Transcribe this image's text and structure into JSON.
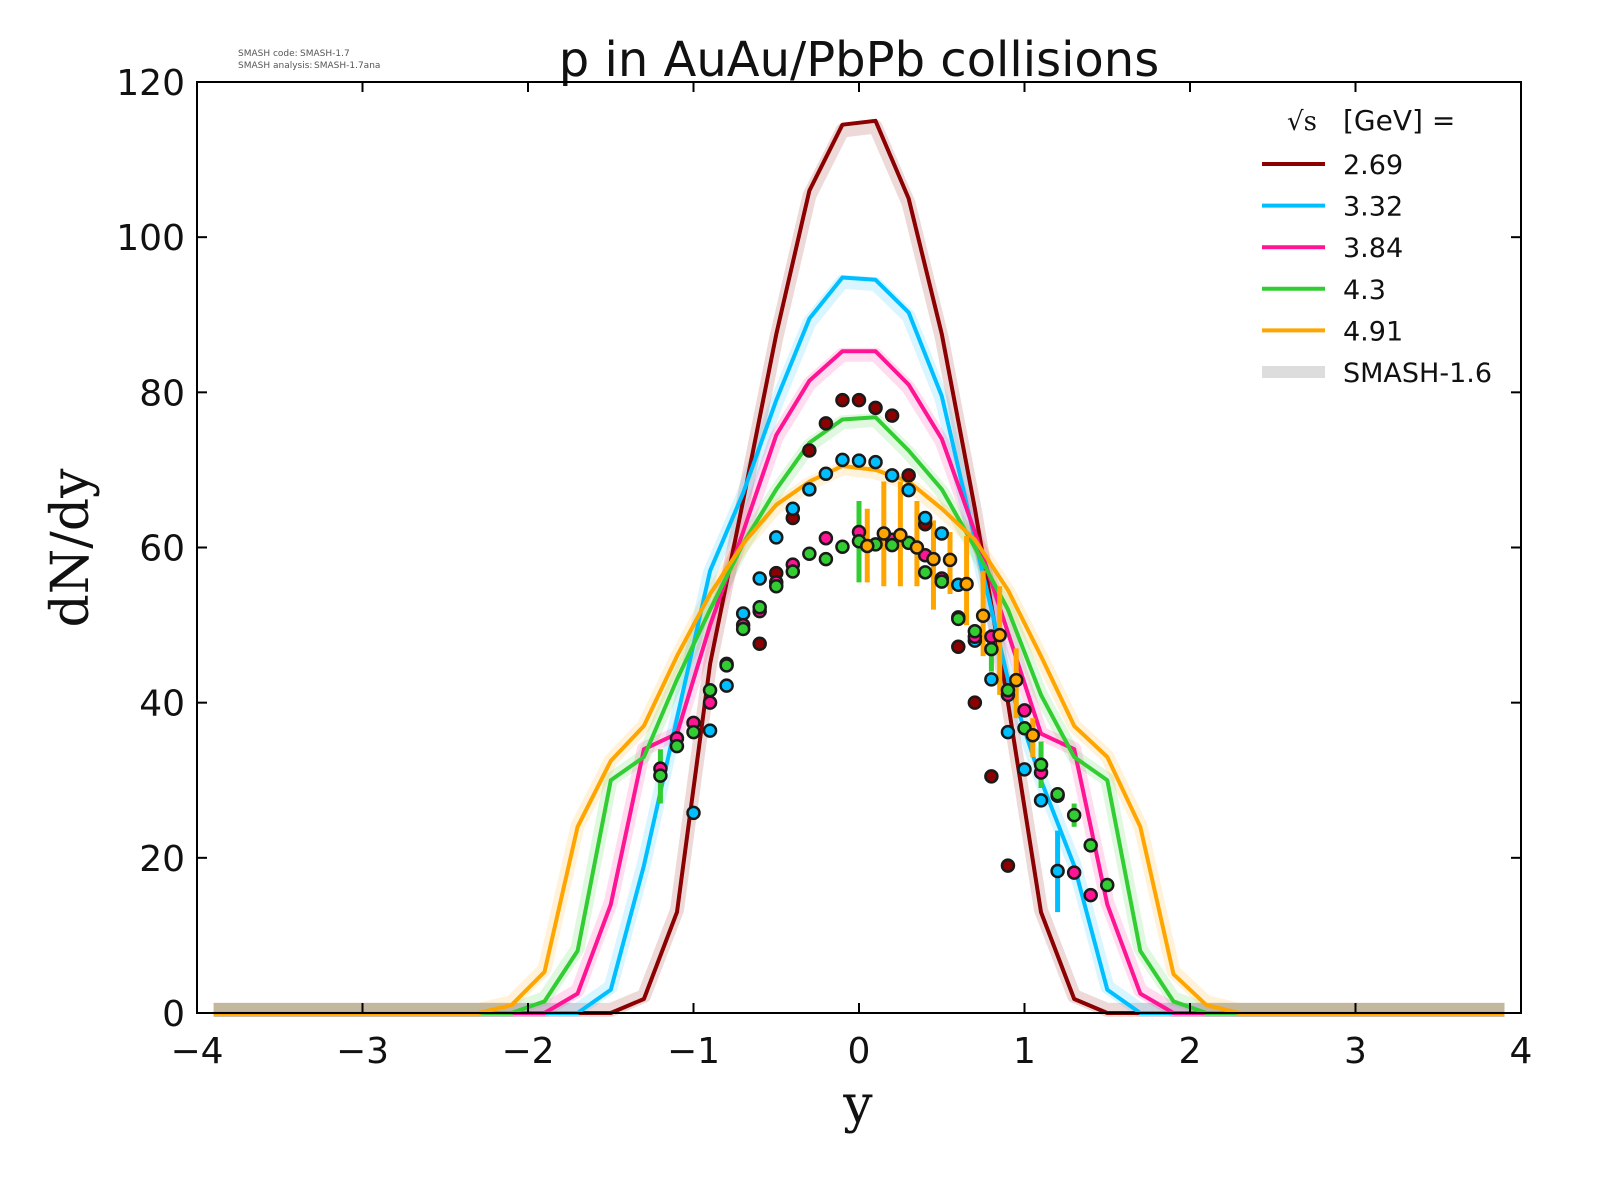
{
  "header": {
    "code_label": "SMASH code:",
    "code_value": "SMASH-1.7",
    "analysis_label": "SMASH analysis:",
    "analysis_value": "SMASH-1.7ana"
  },
  "chart_data": {
    "type": "line",
    "title": "p in AuAu/PbPb collisions",
    "xlabel": "y",
    "ylabel": "dN/dy",
    "xlim": [
      -4,
      4
    ],
    "ylim": [
      0,
      120
    ],
    "xticks": [
      -4,
      -3,
      -2,
      -1,
      0,
      1,
      2,
      3,
      4
    ],
    "yticks": [
      0,
      20,
      40,
      60,
      80,
      100,
      120
    ],
    "xtick_labels": [
      "−4",
      "−3",
      "−2",
      "−1",
      "0",
      "1",
      "2",
      "3",
      "4"
    ],
    "ytick_labels": [
      "0",
      "20",
      "40",
      "60",
      "80",
      "100",
      "120"
    ],
    "grid": false,
    "legend": {
      "title": "[GeV] =",
      "title_symbol": "√s",
      "placement": "top-right",
      "reference_label": "SMASH-1.6",
      "reference_color": "#dddddd"
    },
    "series": [
      {
        "name": "2.69",
        "color": "#8b0000",
        "line": {
          "x": [
            -3.9,
            -1.7,
            -1.5,
            -1.3,
            -1.1,
            -0.9,
            -0.7,
            -0.5,
            -0.3,
            -0.1,
            0.1,
            0.3,
            0.5,
            0.7,
            0.9,
            1.1,
            1.3,
            1.5,
            1.7,
            3.9
          ],
          "y": [
            0,
            0,
            0,
            1.8,
            13,
            45,
            66,
            87.5,
            106,
            114.5,
            115,
            105,
            87.5,
            65,
            40,
            13,
            1.8,
            0,
            0,
            0
          ]
        },
        "points": {
          "x": [
            -0.6,
            -0.5,
            -0.4,
            -0.3,
            -0.2,
            -0.1,
            0,
            0.1,
            0.2,
            0.3,
            0.4,
            0.6,
            0.7,
            0.8,
            0.9
          ],
          "y": [
            47.6,
            56.7,
            63.8,
            72.5,
            76,
            79,
            79,
            78,
            77,
            69.3,
            63,
            47.2,
            40,
            30.5,
            19
          ]
        }
      },
      {
        "name": "3.32",
        "color": "#00bfff",
        "line": {
          "x": [
            -3.9,
            -1.7,
            -1.5,
            -1.3,
            -1.1,
            -0.9,
            -0.7,
            -0.5,
            -0.3,
            -0.1,
            0.1,
            0.3,
            0.5,
            0.7,
            0.9,
            1.1,
            1.3,
            1.5,
            1.7,
            3.9
          ],
          "y": [
            0,
            0,
            3,
            19,
            38,
            57,
            67,
            79,
            89.5,
            94.8,
            94.5,
            90.3,
            79.5,
            61,
            43,
            30,
            19,
            3,
            0,
            0
          ]
        },
        "points": {
          "x": [
            -1.0,
            -0.9,
            -0.8,
            -0.7,
            -0.6,
            -0.5,
            -0.4,
            -0.3,
            -0.2,
            -0.1,
            0,
            0.1,
            0.2,
            0.3,
            0.4,
            0.5,
            0.6,
            0.7,
            0.8,
            0.9,
            1.0,
            1.1,
            1.2
          ],
          "y": [
            25.8,
            36.4,
            42.2,
            51.5,
            56,
            61.3,
            65,
            67.5,
            69.5,
            71.3,
            71.2,
            71,
            69.3,
            67.4,
            63.8,
            61.8,
            55.2,
            48,
            43,
            36.2,
            31.4,
            27.4,
            18.3
          ],
          "err_x": [
            1.2
          ],
          "err_lo": [
            13
          ],
          "err_hi": [
            23.5
          ]
        }
      },
      {
        "name": "3.84",
        "color": "#ff1493",
        "line": {
          "x": [
            -3.9,
            -1.9,
            -1.7,
            -1.5,
            -1.3,
            -1.1,
            -0.9,
            -0.7,
            -0.5,
            -0.3,
            -0.1,
            0.1,
            0.3,
            0.5,
            0.7,
            0.9,
            1.1,
            1.3,
            1.5,
            1.7,
            1.9,
            3.9
          ],
          "y": [
            0,
            0,
            2.5,
            14,
            34,
            36,
            50,
            62,
            74.5,
            81.5,
            85.3,
            85.3,
            81,
            74,
            62,
            49,
            36,
            34,
            14,
            2.5,
            0,
            0
          ]
        },
        "points": {
          "x": [
            -1.2,
            -1.1,
            -1.0,
            -0.9,
            -0.8,
            -0.7,
            -0.6,
            -0.5,
            -0.4,
            -0.2,
            0,
            0.2,
            0.4,
            0.5,
            0.6,
            0.7,
            0.8,
            0.9,
            1.0,
            1.1,
            1.2,
            1.3,
            1.4
          ],
          "y": [
            31.5,
            35.4,
            37.4,
            40,
            45,
            50,
            51.8,
            55.5,
            57.8,
            61.2,
            62,
            61,
            59,
            56,
            51,
            48.5,
            48.5,
            41,
            39,
            31,
            28,
            18.1,
            15.2
          ]
        }
      },
      {
        "name": "4.3",
        "color": "#32cd32",
        "line": {
          "x": [
            -3.9,
            -2.1,
            -1.9,
            -1.7,
            -1.5,
            -1.3,
            -1.1,
            -0.9,
            -0.7,
            -0.5,
            -0.3,
            -0.1,
            0.1,
            0.3,
            0.5,
            0.7,
            0.9,
            1.1,
            1.3,
            1.5,
            1.7,
            1.9,
            2.1,
            3.9
          ],
          "y": [
            0,
            0,
            1.5,
            8,
            30,
            33,
            43,
            52,
            60.5,
            67.5,
            73.5,
            76.5,
            76.8,
            72.5,
            67.5,
            60,
            52,
            41,
            33,
            30,
            8,
            1.5,
            0,
            0
          ]
        },
        "points": {
          "x": [
            -1.2,
            -1.1,
            -1.0,
            -0.9,
            -0.8,
            -0.7,
            -0.6,
            -0.5,
            -0.4,
            -0.3,
            -0.2,
            -0.1,
            0,
            0.1,
            0.2,
            0.3,
            0.4,
            0.5,
            0.6,
            0.7,
            0.8,
            0.9,
            1.0,
            1.1,
            1.2,
            1.3,
            1.4,
            1.5
          ],
          "y": [
            30.6,
            34.4,
            36.2,
            41.6,
            44.8,
            49.5,
            52.3,
            55,
            56.9,
            59.2,
            58.5,
            60.1,
            60.8,
            60.4,
            60.3,
            60.6,
            56.8,
            55.6,
            50.8,
            49.2,
            46.9,
            41.6,
            36.7,
            32,
            28.2,
            25.5,
            21.6,
            16.5
          ],
          "err_x": [
            -1.2,
            0,
            0.8,
            1.1,
            1.3
          ],
          "err_lo": [
            27,
            55.5,
            44,
            29,
            24
          ],
          "err_hi": [
            34,
            66,
            49.5,
            35,
            27
          ]
        }
      },
      {
        "name": "4.91",
        "color": "#ffa500",
        "line": {
          "x": [
            -3.9,
            -2.3,
            -2.1,
            -1.9,
            -1.7,
            -1.5,
            -1.3,
            -1.1,
            -0.9,
            -0.7,
            -0.5,
            -0.3,
            -0.1,
            0.1,
            0.3,
            0.5,
            0.7,
            0.9,
            1.1,
            1.3,
            1.5,
            1.7,
            1.9,
            2.1,
            2.3,
            3.9
          ],
          "y": [
            0,
            0,
            1,
            5.3,
            24,
            32.5,
            37,
            46,
            54,
            60.5,
            65.5,
            68.5,
            70.5,
            70,
            68.5,
            65,
            61,
            54.5,
            46,
            37,
            33,
            24,
            5,
            1,
            0,
            0
          ]
        },
        "points": {
          "x": [
            0.05,
            0.15,
            0.25,
            0.35,
            0.45,
            0.55,
            0.65,
            0.75,
            0.85,
            0.95,
            1.05
          ],
          "y": [
            60.2,
            61.8,
            61.6,
            60,
            58.5,
            58.4,
            55.3,
            51.2,
            48.7,
            42.9,
            35.8
          ],
          "err_x": [
            0.05,
            0.15,
            0.25,
            0.35,
            0.45,
            0.55,
            0.65,
            0.75,
            0.85,
            0.95,
            1.05
          ],
          "err_lo": [
            55.5,
            55,
            55,
            55,
            52,
            54,
            50,
            46,
            41,
            38,
            33
          ],
          "err_hi": [
            65,
            68.5,
            68.5,
            66,
            63.5,
            62,
            61.5,
            57,
            55,
            47,
            38
          ]
        }
      }
    ]
  }
}
